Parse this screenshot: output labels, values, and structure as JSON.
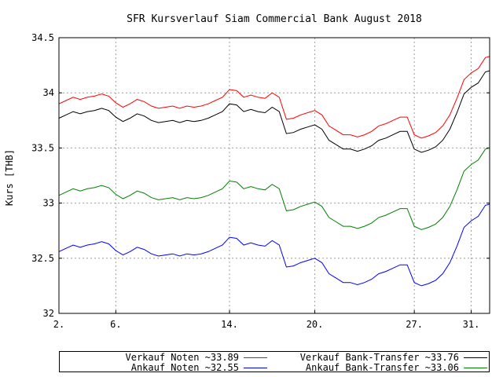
{
  "chart_data": {
    "type": "line",
    "title": "SFR Kursverlauf Siam Commercial Bank August 2018",
    "ylabel": "Kurs [THB]",
    "xlabel": "",
    "ylim": [
      32,
      34.5
    ],
    "xlim": [
      2,
      32.3
    ],
    "grid": true,
    "legend_placement": "bottom",
    "y_ticks": [
      32,
      32.5,
      33,
      33.5,
      34,
      34.5
    ],
    "y_tick_labels": [
      "32",
      "32.5",
      "33",
      "33.5",
      "34",
      "34.5"
    ],
    "x_ticks": [
      2,
      6,
      14,
      20,
      27,
      31
    ],
    "x_tick_labels": [
      "2.",
      "6.",
      "14.",
      "20.",
      "27.",
      "31."
    ],
    "x": [
      2,
      2.5,
      3,
      3.5,
      4,
      4.5,
      5,
      5.5,
      6,
      6.5,
      7,
      7.5,
      8,
      8.5,
      9,
      9.5,
      10,
      10.5,
      11,
      11.5,
      12,
      12.5,
      13,
      13.5,
      14,
      14.5,
      15,
      15.5,
      16,
      16.5,
      17,
      17.5,
      18,
      18.5,
      19,
      19.5,
      20,
      20.5,
      21,
      21.5,
      22,
      22.5,
      23,
      23.5,
      24,
      24.5,
      25,
      25.5,
      26,
      26.5,
      27,
      27.5,
      28,
      28.5,
      29,
      29.5,
      30,
      30.5,
      31,
      31.5,
      32,
      32.3
    ],
    "series": [
      {
        "name": "Verkauf Noten ~33.89",
        "color": "#ff0000",
        "values": [
          33.9,
          33.93,
          33.96,
          33.94,
          33.96,
          33.97,
          33.99,
          33.97,
          33.91,
          33.87,
          33.9,
          33.94,
          33.92,
          33.88,
          33.86,
          33.87,
          33.88,
          33.86,
          33.88,
          33.87,
          33.88,
          33.9,
          33.93,
          33.96,
          34.03,
          34.02,
          33.96,
          33.98,
          33.96,
          33.95,
          34.0,
          33.96,
          33.76,
          33.77,
          33.8,
          33.82,
          33.84,
          33.8,
          33.7,
          33.66,
          33.62,
          33.62,
          33.6,
          33.62,
          33.65,
          33.7,
          33.72,
          33.75,
          33.78,
          33.78,
          33.62,
          33.59,
          33.61,
          33.64,
          33.7,
          33.8,
          33.95,
          34.12,
          34.18,
          34.22,
          34.32,
          34.33
        ]
      },
      {
        "name": "Verkauf Bank-Transfer ~33.76",
        "color": "#000000",
        "values": [
          33.77,
          33.8,
          33.83,
          33.81,
          33.83,
          33.84,
          33.86,
          33.84,
          33.78,
          33.74,
          33.77,
          33.81,
          33.79,
          33.75,
          33.73,
          33.74,
          33.75,
          33.73,
          33.75,
          33.74,
          33.75,
          33.77,
          33.8,
          33.83,
          33.9,
          33.89,
          33.83,
          33.85,
          33.83,
          33.82,
          33.87,
          33.83,
          33.63,
          33.64,
          33.67,
          33.69,
          33.71,
          33.67,
          33.57,
          33.53,
          33.49,
          33.49,
          33.47,
          33.49,
          33.52,
          33.57,
          33.59,
          33.62,
          33.65,
          33.65,
          33.49,
          33.46,
          33.48,
          33.51,
          33.57,
          33.67,
          33.82,
          33.99,
          34.05,
          34.09,
          34.19,
          34.2
        ]
      },
      {
        "name": "Ankauf Noten ~32.55",
        "color": "#0000ff",
        "values": [
          32.56,
          32.59,
          32.62,
          32.6,
          32.62,
          32.63,
          32.65,
          32.63,
          32.57,
          32.53,
          32.56,
          32.6,
          32.58,
          32.54,
          32.52,
          32.53,
          32.54,
          32.52,
          32.54,
          32.53,
          32.54,
          32.56,
          32.59,
          32.62,
          32.69,
          32.68,
          32.62,
          32.64,
          32.62,
          32.61,
          32.66,
          32.62,
          32.42,
          32.43,
          32.46,
          32.48,
          32.5,
          32.46,
          32.36,
          32.32,
          32.28,
          32.28,
          32.26,
          32.28,
          32.31,
          32.36,
          32.38,
          32.41,
          32.44,
          32.44,
          32.28,
          32.25,
          32.27,
          32.3,
          32.36,
          32.46,
          32.61,
          32.78,
          32.84,
          32.88,
          32.98,
          32.99
        ]
      },
      {
        "name": "Ankauf Bank-Transfer ~33.06",
        "color": "#008000",
        "values": [
          33.07,
          33.1,
          33.13,
          33.11,
          33.13,
          33.14,
          33.16,
          33.14,
          33.08,
          33.04,
          33.07,
          33.11,
          33.09,
          33.05,
          33.03,
          33.04,
          33.05,
          33.03,
          33.05,
          33.04,
          33.05,
          33.07,
          33.1,
          33.13,
          33.2,
          33.19,
          33.13,
          33.15,
          33.13,
          33.12,
          33.17,
          33.13,
          32.93,
          32.94,
          32.97,
          32.99,
          33.01,
          32.97,
          32.87,
          32.83,
          32.79,
          32.79,
          32.77,
          32.79,
          32.82,
          32.87,
          32.89,
          32.92,
          32.95,
          32.95,
          32.79,
          32.76,
          32.78,
          32.81,
          32.87,
          32.97,
          33.12,
          33.29,
          33.35,
          33.39,
          33.49,
          33.5
        ]
      }
    ]
  },
  "legend": [
    {
      "label": "Verkauf Noten ~33.89",
      "color": "#ff0000"
    },
    {
      "label": "Verkauf Bank-Transfer ~33.76",
      "color": "#000000"
    },
    {
      "label": "Ankauf Noten ~32.55",
      "color": "#0000ff"
    },
    {
      "label": "Ankauf Bank-Transfer ~33.06",
      "color": "#008000"
    }
  ]
}
